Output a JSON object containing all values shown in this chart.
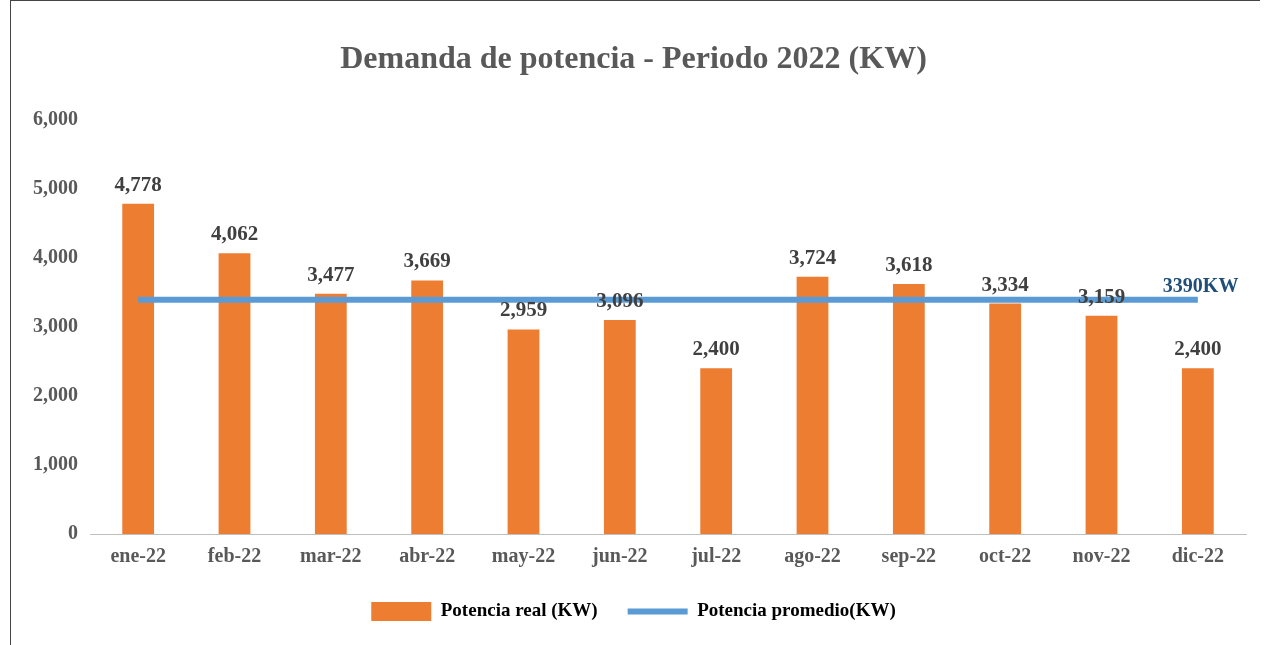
{
  "chart_data": {
    "type": "bar",
    "title": "Demanda de potencia - Periodo 2022 (KW)",
    "categories": [
      "ene-22",
      "feb-22",
      "mar-22",
      "abr-22",
      "may-22",
      "jun-22",
      "jul-22",
      "ago-22",
      "sep-22",
      "oct-22",
      "nov-22",
      "dic-22"
    ],
    "series": [
      {
        "name": "Potencia real (KW)",
        "color": "#ed7d31",
        "values": [
          4778,
          4062,
          3477,
          3669,
          2959,
          3096,
          2400,
          3724,
          3618,
          3334,
          3159,
          2400
        ],
        "value_labels": [
          "4,778",
          "4,062",
          "3,477",
          "3,669",
          "2,959",
          "3,096",
          "2,400",
          "3,724",
          "3,618",
          "3,334",
          "3,159",
          "2,400"
        ]
      },
      {
        "name": "Potencia promedio(KW)",
        "type": "line",
        "color": "#5b9bd5",
        "values": [
          3390,
          3390,
          3390,
          3390,
          3390,
          3390,
          3390,
          3390,
          3390,
          3390,
          3390,
          3390
        ]
      }
    ],
    "annotations": [
      {
        "text": "3390KW",
        "x": "dic-22",
        "y": 3390
      }
    ],
    "ylim": [
      0,
      6000
    ],
    "yticks": [
      0,
      {
        "value": 1000,
        "label": "1,000"
      },
      {
        "value": 2000,
        "label": "2,000"
      },
      {
        "value": 3000,
        "label": "3,000"
      },
      {
        "value": 4000,
        "label": "4,000"
      },
      {
        "value": 5000,
        "label": "5,000"
      },
      {
        "value": 6000,
        "label": "6,000"
      }
    ],
    "grid": false,
    "legend": "bottom",
    "marker": "none",
    "line_style": "solid"
  }
}
